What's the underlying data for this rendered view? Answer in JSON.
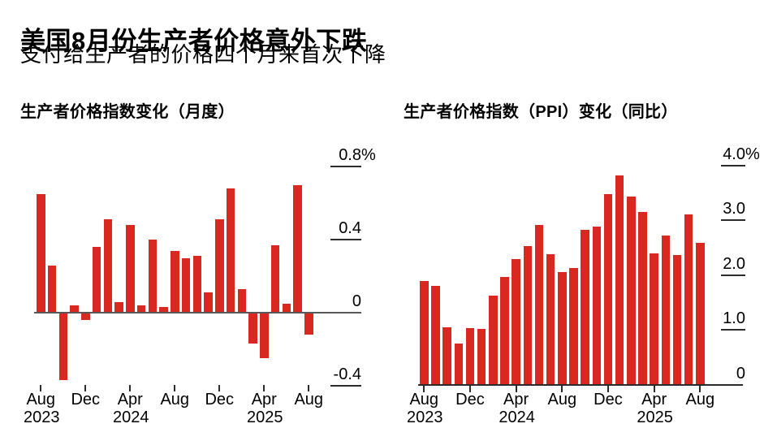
{
  "header": {
    "title": "美国8月份生产者价格意外下跌",
    "subtitle": "支付给生产者的价格四个月来首次下降"
  },
  "colors": {
    "bar": "#d9281f",
    "monthly_axis": "#58585a",
    "yoy_axis": "#2b2b2b"
  },
  "chart_data": [
    {
      "type": "bar",
      "title": "生产者价格指数变化（月度）",
      "xlabel": "",
      "ylabel": "",
      "ylim": [
        -0.4,
        0.8
      ],
      "grid": false,
      "categories": [
        "Aug 2023",
        "Sep 2023",
        "Oct 2023",
        "Nov 2023",
        "Dec 2023",
        "Jan 2024",
        "Feb 2024",
        "Mar 2024",
        "Apr 2024",
        "May 2024",
        "Jun 2024",
        "Jul 2024",
        "Aug 2024",
        "Sep 2024",
        "Oct 2024",
        "Nov 2024",
        "Dec 2024",
        "Jan 2025",
        "Feb 2025",
        "Mar 2025",
        "Apr 2025",
        "May 2025",
        "Jun 2025",
        "Jul 2025",
        "Aug 2025"
      ],
      "values": [
        0.65,
        0.26,
        -0.37,
        0.04,
        -0.04,
        0.36,
        0.51,
        0.06,
        0.48,
        0.04,
        0.4,
        0.03,
        0.34,
        0.3,
        0.31,
        0.11,
        0.51,
        0.68,
        0.13,
        -0.17,
        -0.25,
        0.37,
        0.05,
        0.7,
        -0.12
      ],
      "yticks": [
        {
          "v": 0.8,
          "label": "0.8%"
        },
        {
          "v": 0.4,
          "label": "0.4"
        },
        {
          "v": 0,
          "label": "0"
        },
        {
          "v": -0.4,
          "label": "-0.4"
        }
      ],
      "xticks": [
        {
          "i": 0,
          "month": "Aug",
          "year": "2023"
        },
        {
          "i": 4,
          "month": "Dec"
        },
        {
          "i": 8,
          "month": "Apr",
          "year": "2024"
        },
        {
          "i": 12,
          "month": "Aug"
        },
        {
          "i": 16,
          "month": "Dec"
        },
        {
          "i": 20,
          "month": "Apr",
          "year": "2025"
        },
        {
          "i": 24,
          "month": "Aug"
        }
      ]
    },
    {
      "type": "bar",
      "title": "生产者价格指数（PPI）变化（同比）",
      "xlabel": "",
      "ylabel": "",
      "ylim": [
        0,
        4.0
      ],
      "grid": false,
      "categories": [
        "Aug 2023",
        "Sep 2023",
        "Oct 2023",
        "Nov 2023",
        "Dec 2023",
        "Jan 2024",
        "Feb 2024",
        "Mar 2024",
        "Apr 2024",
        "May 2024",
        "Jun 2024",
        "Jul 2024",
        "Aug 2024",
        "Sep 2024",
        "Oct 2024",
        "Nov 2024",
        "Dec 2024",
        "Jan 2025",
        "Feb 2025",
        "Mar 2025",
        "Apr 2025",
        "May 2025",
        "Jun 2025",
        "Jul 2025",
        "Aug 2025"
      ],
      "values": [
        1.89,
        1.8,
        1.05,
        0.75,
        1.04,
        1.02,
        1.62,
        1.97,
        2.29,
        2.53,
        2.91,
        2.38,
        2.05,
        2.13,
        2.83,
        2.89,
        3.48,
        3.81,
        3.43,
        3.15,
        2.39,
        2.72,
        2.36,
        3.11,
        2.59
      ],
      "yticks": [
        {
          "v": 4.0,
          "label": "4.0%"
        },
        {
          "v": 3.0,
          "label": "3.0"
        },
        {
          "v": 2.0,
          "label": "2.0"
        },
        {
          "v": 1.0,
          "label": "1.0"
        },
        {
          "v": 0,
          "label": "0"
        }
      ],
      "xticks": [
        {
          "i": 0,
          "month": "Aug",
          "year": "2023"
        },
        {
          "i": 4,
          "month": "Dec"
        },
        {
          "i": 8,
          "month": "Apr",
          "year": "2024"
        },
        {
          "i": 12,
          "month": "Aug"
        },
        {
          "i": 16,
          "month": "Dec"
        },
        {
          "i": 20,
          "month": "Apr",
          "year": "2025"
        },
        {
          "i": 24,
          "month": "Aug"
        }
      ]
    }
  ]
}
